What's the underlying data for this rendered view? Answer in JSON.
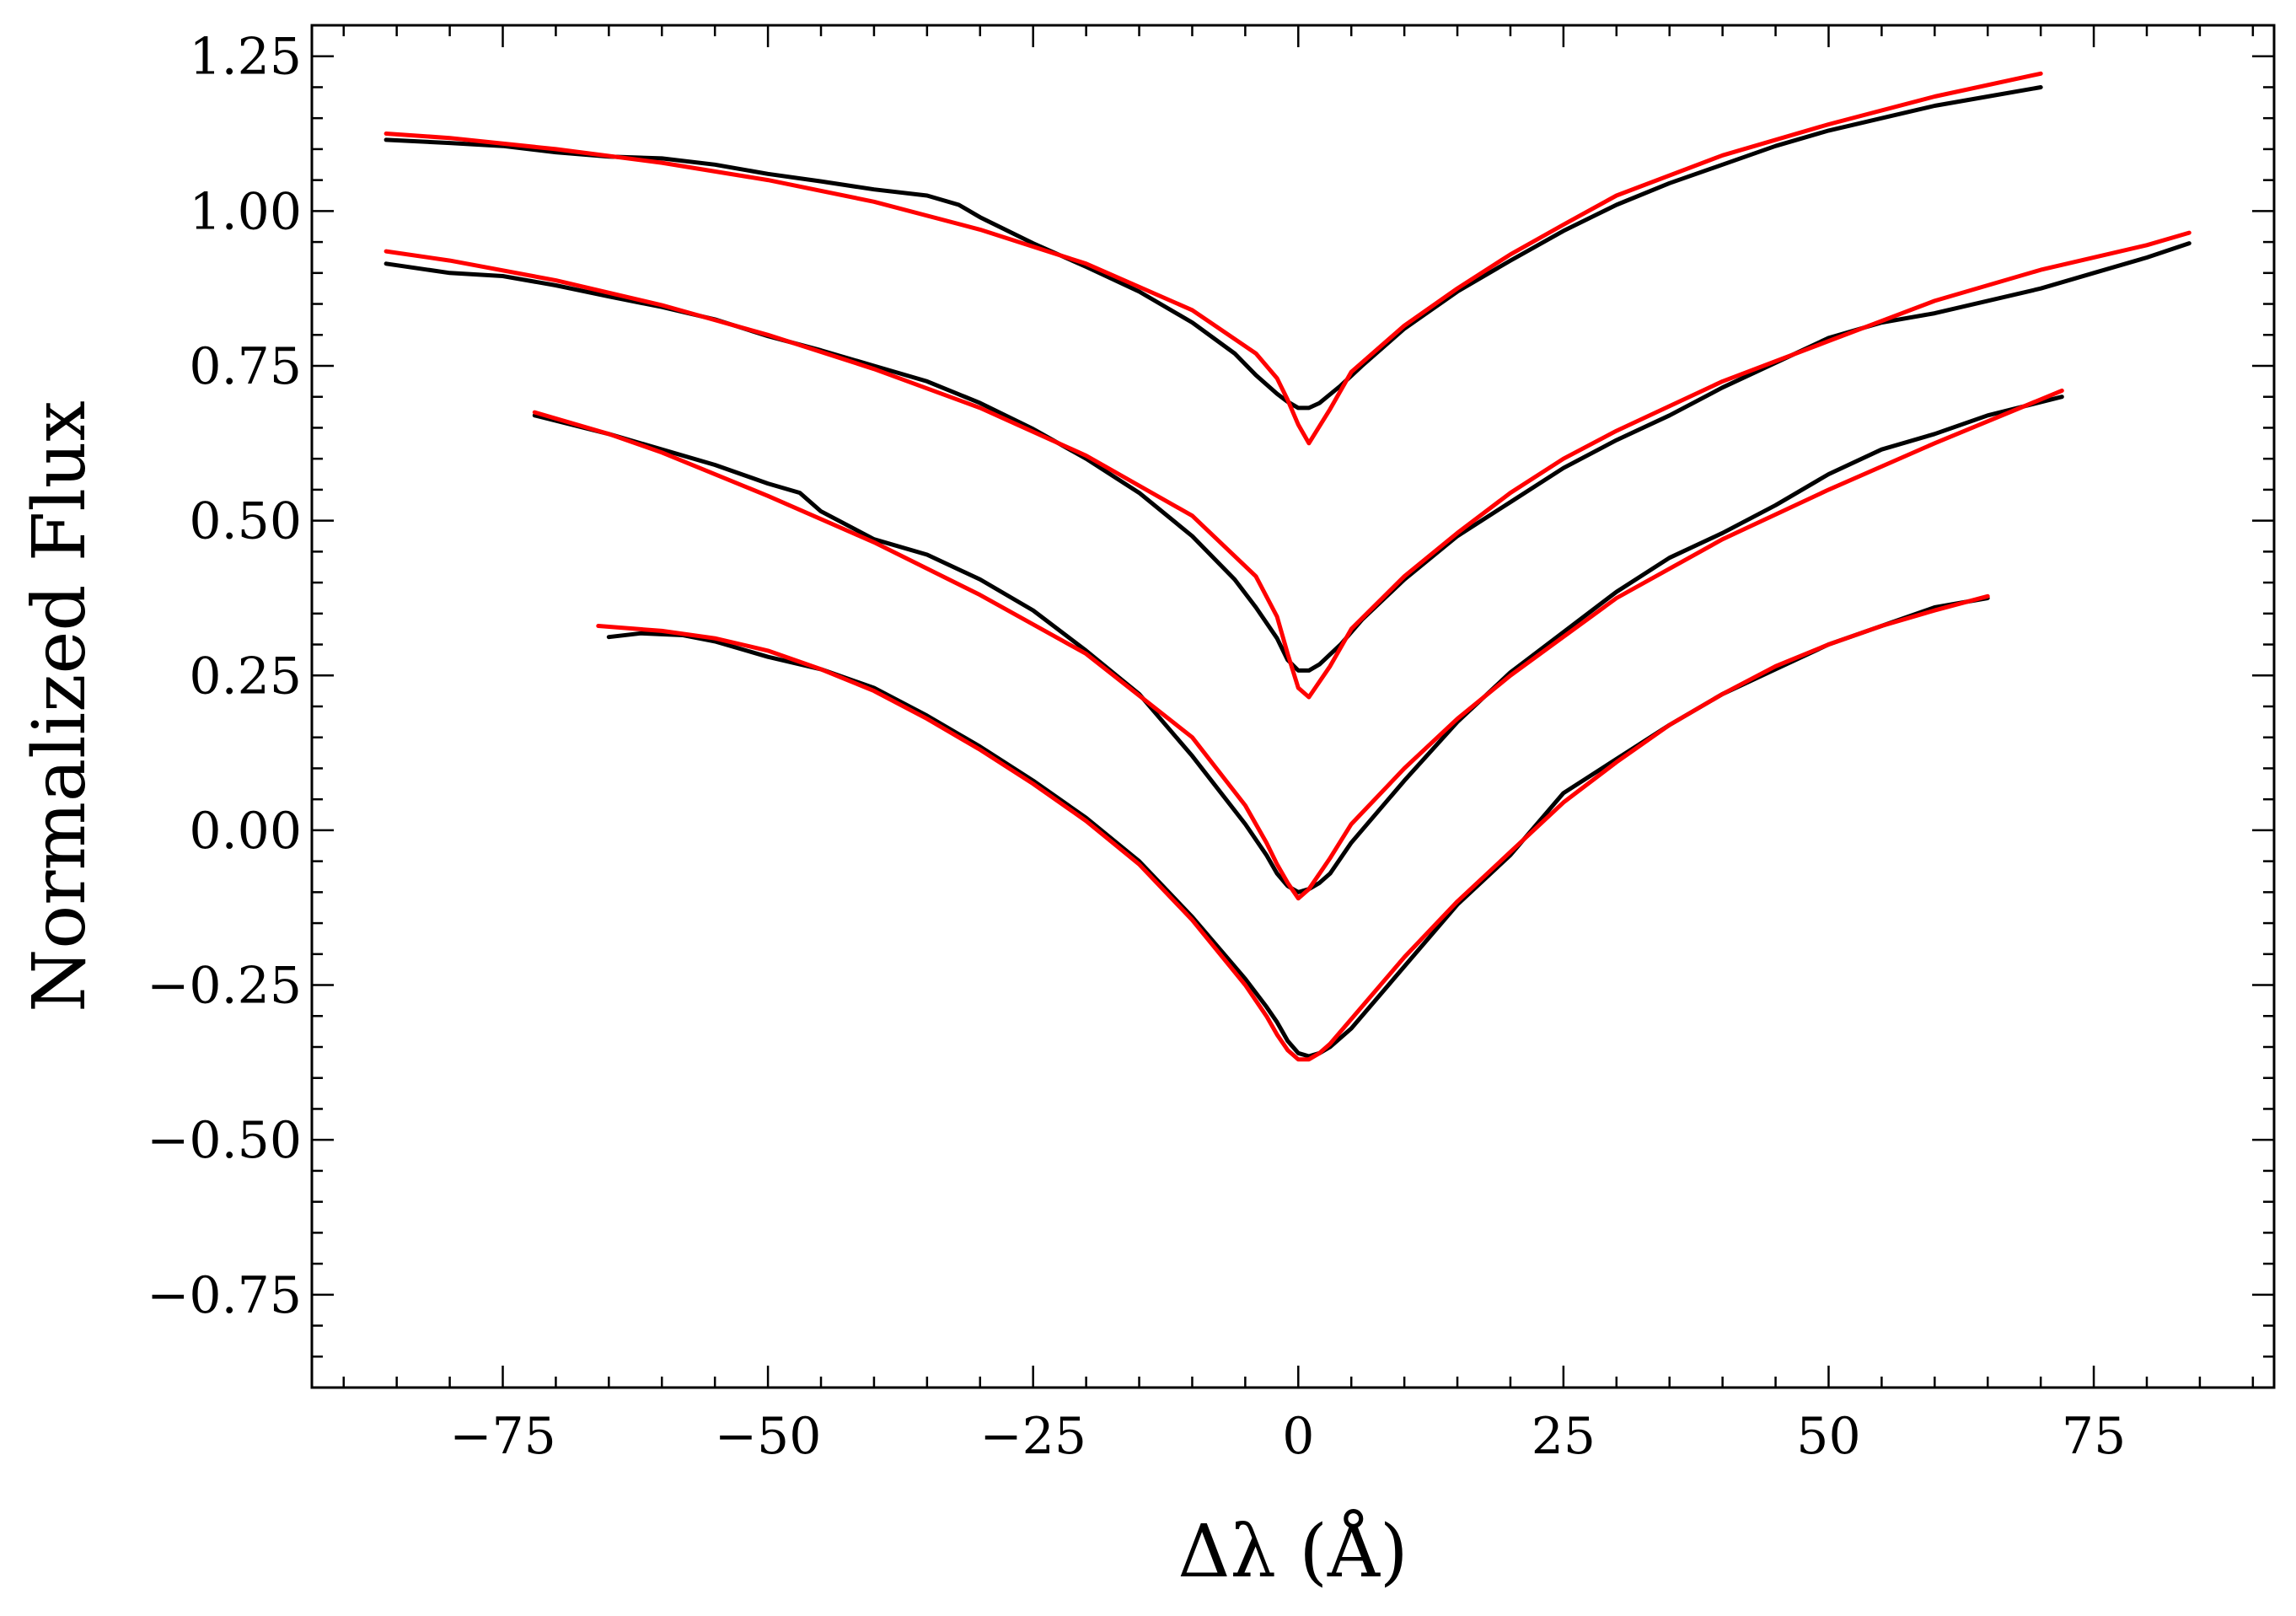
{
  "chart_data": {
    "type": "line",
    "title": "",
    "xlabel": "Δλ (Å)",
    "ylabel": "Normalized Flux",
    "xlim": [
      -93,
      92
    ],
    "ylim": [
      -0.9,
      1.3
    ],
    "x_ticks": [
      -75,
      -50,
      -25,
      0,
      25,
      50,
      75
    ],
    "x_tick_labels": [
      "−75",
      "−50",
      "−25",
      "0",
      "25",
      "50",
      "75"
    ],
    "x_minor_step": 5,
    "y_ticks": [
      -0.75,
      -0.5,
      -0.25,
      0,
      0.25,
      0.5,
      0.75,
      1.0,
      1.25
    ],
    "y_tick_labels": [
      "−0.75",
      "−0.50",
      "−0.25",
      "0.00",
      "0.25",
      "0.50",
      "0.75",
      "1.00",
      "1.25"
    ],
    "y_minor_step": 0.05,
    "grid": false,
    "series": [
      {
        "color": "#000000",
        "x": [
          -86,
          -80,
          -75,
          -70,
          -65,
          -60,
          -55,
          -50,
          -45,
          -40,
          -35,
          -32,
          -30,
          -25,
          -20,
          -15,
          -10,
          -6,
          -4,
          -2,
          -1,
          0,
          1,
          2,
          4,
          6,
          10,
          15,
          20,
          25,
          30,
          35,
          40,
          45,
          50,
          55,
          60,
          65,
          70
        ],
        "y": [
          1.115,
          1.11,
          1.105,
          1.095,
          1.088,
          1.085,
          1.075,
          1.06,
          1.048,
          1.035,
          1.025,
          1.01,
          0.99,
          0.948,
          0.91,
          0.87,
          0.82,
          0.77,
          0.735,
          0.705,
          0.692,
          0.682,
          0.682,
          0.69,
          0.718,
          0.75,
          0.81,
          0.87,
          0.92,
          0.968,
          1.01,
          1.045,
          1.075,
          1.105,
          1.13,
          1.15,
          1.17,
          1.185,
          1.2
        ]
      },
      {
        "color": "#ff0000",
        "x": [
          -86,
          -80,
          -70,
          -60,
          -50,
          -40,
          -30,
          -20,
          -10,
          -4,
          -2,
          -1,
          0,
          1,
          3,
          5,
          10,
          15,
          20,
          25,
          30,
          40,
          50,
          60,
          70
        ],
        "y": [
          1.125,
          1.118,
          1.1,
          1.078,
          1.05,
          1.015,
          0.97,
          0.915,
          0.84,
          0.77,
          0.73,
          0.695,
          0.655,
          0.625,
          0.68,
          0.74,
          0.815,
          0.875,
          0.93,
          0.978,
          1.025,
          1.09,
          1.14,
          1.185,
          1.222
        ]
      },
      {
        "color": "#000000",
        "x": [
          -86,
          -80,
          -75,
          -70,
          -65,
          -60,
          -55,
          -50,
          -45,
          -40,
          -35,
          -30,
          -25,
          -20,
          -15,
          -10,
          -6,
          -4,
          -2,
          -1,
          0,
          1,
          2,
          4,
          6,
          10,
          15,
          20,
          25,
          30,
          35,
          40,
          45,
          50,
          55,
          60,
          65,
          70,
          75,
          80,
          84
        ],
        "y": [
          0.915,
          0.9,
          0.895,
          0.88,
          0.862,
          0.845,
          0.825,
          0.798,
          0.775,
          0.75,
          0.725,
          0.69,
          0.648,
          0.6,
          0.545,
          0.475,
          0.405,
          0.36,
          0.31,
          0.275,
          0.258,
          0.258,
          0.268,
          0.3,
          0.34,
          0.405,
          0.475,
          0.53,
          0.585,
          0.63,
          0.67,
          0.715,
          0.755,
          0.795,
          0.82,
          0.835,
          0.855,
          0.875,
          0.9,
          0.925,
          0.948
        ]
      },
      {
        "color": "#ff0000",
        "x": [
          -86,
          -80,
          -70,
          -60,
          -50,
          -40,
          -30,
          -20,
          -10,
          -4,
          -2,
          -1,
          0,
          1,
          3,
          5,
          10,
          15,
          20,
          25,
          30,
          40,
          50,
          60,
          70,
          80,
          84
        ],
        "y": [
          0.935,
          0.92,
          0.888,
          0.848,
          0.8,
          0.745,
          0.682,
          0.605,
          0.508,
          0.41,
          0.345,
          0.285,
          0.23,
          0.215,
          0.265,
          0.325,
          0.41,
          0.48,
          0.545,
          0.6,
          0.645,
          0.725,
          0.79,
          0.855,
          0.905,
          0.945,
          0.965
        ]
      },
      {
        "color": "#000000",
        "x": [
          -72,
          -65,
          -60,
          -55,
          -50,
          -47,
          -45,
          -40,
          -35,
          -30,
          -25,
          -20,
          -15,
          -10,
          -5,
          -3,
          -2,
          -1,
          0,
          1,
          2,
          3,
          5,
          10,
          15,
          20,
          25,
          30,
          35,
          40,
          45,
          50,
          55,
          60,
          65,
          72
        ],
        "y": [
          0.67,
          0.64,
          0.615,
          0.59,
          0.56,
          0.545,
          0.515,
          0.47,
          0.445,
          0.405,
          0.355,
          0.29,
          0.22,
          0.12,
          0.01,
          -0.04,
          -0.07,
          -0.09,
          -0.1,
          -0.095,
          -0.085,
          -0.07,
          -0.02,
          0.08,
          0.175,
          0.255,
          0.32,
          0.385,
          0.44,
          0.48,
          0.525,
          0.575,
          0.615,
          0.64,
          0.67,
          0.7
        ]
      },
      {
        "color": "#ff0000",
        "x": [
          -72,
          -65,
          -60,
          -50,
          -40,
          -30,
          -20,
          -10,
          -5,
          -3,
          -2,
          -1,
          0,
          1,
          2,
          3,
          5,
          10,
          15,
          20,
          30,
          40,
          50,
          60,
          72
        ],
        "y": [
          0.675,
          0.64,
          0.61,
          0.54,
          0.465,
          0.38,
          0.285,
          0.15,
          0.04,
          -0.02,
          -0.055,
          -0.085,
          -0.11,
          -0.095,
          -0.07,
          -0.045,
          0.01,
          0.1,
          0.18,
          0.25,
          0.375,
          0.47,
          0.55,
          0.625,
          0.71
        ]
      },
      {
        "color": "#000000",
        "x": [
          -65,
          -62,
          -58,
          -55,
          -50,
          -45,
          -40,
          -35,
          -30,
          -25,
          -20,
          -15,
          -10,
          -5,
          -3,
          -2,
          -1,
          0,
          1,
          2,
          3,
          5,
          10,
          15,
          20,
          25,
          30,
          35,
          40,
          45,
          50,
          55,
          60,
          65
        ],
        "y": [
          0.312,
          0.318,
          0.315,
          0.305,
          0.28,
          0.26,
          0.23,
          0.185,
          0.135,
          0.08,
          0.02,
          -0.05,
          -0.14,
          -0.24,
          -0.285,
          -0.31,
          -0.34,
          -0.36,
          -0.365,
          -0.36,
          -0.35,
          -0.32,
          -0.22,
          -0.12,
          -0.04,
          0.06,
          0.115,
          0.17,
          0.22,
          0.26,
          0.3,
          0.33,
          0.36,
          0.375
        ]
      },
      {
        "color": "#ff0000",
        "x": [
          -66,
          -60,
          -55,
          -50,
          -45,
          -40,
          -35,
          -30,
          -25,
          -20,
          -15,
          -10,
          -5,
          -3,
          -2,
          -1,
          0,
          1,
          2,
          3,
          5,
          10,
          15,
          20,
          25,
          30,
          35,
          40,
          45,
          50,
          55,
          60,
          65
        ],
        "y": [
          0.33,
          0.322,
          0.31,
          0.29,
          0.26,
          0.225,
          0.18,
          0.13,
          0.075,
          0.015,
          -0.055,
          -0.145,
          -0.25,
          -0.3,
          -0.33,
          -0.355,
          -0.37,
          -0.37,
          -0.36,
          -0.345,
          -0.305,
          -0.205,
          -0.115,
          -0.035,
          0.045,
          0.11,
          0.17,
          0.22,
          0.265,
          0.3,
          0.33,
          0.355,
          0.378
        ]
      }
    ]
  }
}
